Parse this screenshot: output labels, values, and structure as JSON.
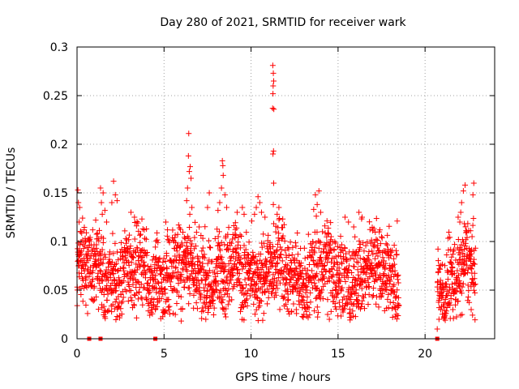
{
  "chart_data": {
    "type": "scatter",
    "title": "Day 280 of 2021, SRMTID for receiver wark",
    "xlabel": "GPS time / hours",
    "ylabel": "SRMTID / TECUs",
    "xlim": [
      0,
      24
    ],
    "ylim": [
      0,
      0.3
    ],
    "xticks": [
      0,
      5,
      10,
      15,
      20
    ],
    "xtick_labels": [
      "0",
      "5",
      "10",
      "15",
      "20"
    ],
    "yticks": [
      0,
      0.05,
      0.1,
      0.15,
      0.2,
      0.25,
      0.3
    ],
    "ytick_labels": [
      "0",
      "0.05",
      "0.1",
      "0.15",
      "0.2",
      "0.25",
      "0.3"
    ],
    "grid": true,
    "marker": "plus",
    "color": "#ff0000",
    "series": [
      {
        "name": "SRMTID",
        "segments": [
          {
            "x_start": 0.0,
            "x_end": 18.5,
            "y_center": 0.068,
            "y_spread": 0.028
          },
          {
            "x_start": 20.7,
            "x_end": 22.9,
            "y_center": 0.065,
            "y_spread": 0.028
          }
        ],
        "points": [
          {
            "x": 0.05,
            "y": 0.153
          },
          {
            "x": 0.08,
            "y": 0.14
          },
          {
            "x": 0.12,
            "y": 0.12
          },
          {
            "x": 0.15,
            "y": 0.135
          },
          {
            "x": 0.2,
            "y": 0.11
          },
          {
            "x": 0.25,
            "y": 0.09
          },
          {
            "x": 0.3,
            "y": 0.075
          },
          {
            "x": 0.35,
            "y": 0.06
          },
          {
            "x": 0.4,
            "y": 0.052
          },
          {
            "x": 0.5,
            "y": 0.1
          },
          {
            "x": 0.55,
            "y": 0.085
          },
          {
            "x": 0.6,
            "y": 0.07
          },
          {
            "x": 1.35,
            "y": 0.155
          },
          {
            "x": 1.4,
            "y": 0.14
          },
          {
            "x": 1.45,
            "y": 0.128
          },
          {
            "x": 1.5,
            "y": 0.15
          },
          {
            "x": 1.6,
            "y": 0.132
          },
          {
            "x": 1.7,
            "y": 0.12
          },
          {
            "x": 1.0,
            "y": 0.04
          },
          {
            "x": 1.1,
            "y": 0.043
          },
          {
            "x": 2.1,
            "y": 0.162
          },
          {
            "x": 2.2,
            "y": 0.148
          },
          {
            "x": 2.3,
            "y": 0.142
          },
          {
            "x": 2.0,
            "y": 0.14
          },
          {
            "x": 3.1,
            "y": 0.13
          },
          {
            "x": 3.3,
            "y": 0.125
          },
          {
            "x": 4.5,
            "y": 0.03
          },
          {
            "x": 4.6,
            "y": 0.033
          },
          {
            "x": 5.1,
            "y": 0.12
          },
          {
            "x": 5.2,
            "y": 0.112
          },
          {
            "x": 6.42,
            "y": 0.211
          },
          {
            "x": 6.4,
            "y": 0.188
          },
          {
            "x": 6.45,
            "y": 0.172
          },
          {
            "x": 6.5,
            "y": 0.177
          },
          {
            "x": 6.55,
            "y": 0.165
          },
          {
            "x": 6.3,
            "y": 0.142
          },
          {
            "x": 6.35,
            "y": 0.155
          },
          {
            "x": 6.6,
            "y": 0.135
          },
          {
            "x": 6.48,
            "y": 0.128
          },
          {
            "x": 7.4,
            "y": 0.02
          },
          {
            "x": 7.6,
            "y": 0.15
          },
          {
            "x": 7.5,
            "y": 0.135
          },
          {
            "x": 8.35,
            "y": 0.183
          },
          {
            "x": 8.38,
            "y": 0.178
          },
          {
            "x": 8.4,
            "y": 0.168
          },
          {
            "x": 8.3,
            "y": 0.155
          },
          {
            "x": 8.5,
            "y": 0.148
          },
          {
            "x": 8.2,
            "y": 0.14
          },
          {
            "x": 8.1,
            "y": 0.132
          },
          {
            "x": 8.6,
            "y": 0.135
          },
          {
            "x": 9.2,
            "y": 0.13
          },
          {
            "x": 9.5,
            "y": 0.135
          },
          {
            "x": 9.6,
            "y": 0.128
          },
          {
            "x": 10.4,
            "y": 0.146
          },
          {
            "x": 10.5,
            "y": 0.14
          },
          {
            "x": 10.3,
            "y": 0.135
          },
          {
            "x": 10.2,
            "y": 0.128
          },
          {
            "x": 10.6,
            "y": 0.13
          },
          {
            "x": 10.8,
            "y": 0.125
          },
          {
            "x": 11.25,
            "y": 0.281
          },
          {
            "x": 11.28,
            "y": 0.273
          },
          {
            "x": 11.3,
            "y": 0.265
          },
          {
            "x": 11.27,
            "y": 0.26
          },
          {
            "x": 11.26,
            "y": 0.252
          },
          {
            "x": 11.24,
            "y": 0.237
          },
          {
            "x": 11.31,
            "y": 0.236
          },
          {
            "x": 11.29,
            "y": 0.193
          },
          {
            "x": 11.26,
            "y": 0.19
          },
          {
            "x": 11.3,
            "y": 0.16
          },
          {
            "x": 11.28,
            "y": 0.138
          },
          {
            "x": 11.6,
            "y": 0.135
          },
          {
            "x": 11.5,
            "y": 0.128
          },
          {
            "x": 13.0,
            "y": 0.022
          },
          {
            "x": 12.6,
            "y": 0.03
          },
          {
            "x": 13.7,
            "y": 0.148
          },
          {
            "x": 13.9,
            "y": 0.152
          },
          {
            "x": 13.8,
            "y": 0.138
          },
          {
            "x": 13.6,
            "y": 0.133
          },
          {
            "x": 14.0,
            "y": 0.13
          },
          {
            "x": 13.75,
            "y": 0.126
          },
          {
            "x": 14.5,
            "y": 0.02
          },
          {
            "x": 14.4,
            "y": 0.025
          },
          {
            "x": 14.6,
            "y": 0.028
          },
          {
            "x": 15.4,
            "y": 0.125
          },
          {
            "x": 15.6,
            "y": 0.12
          },
          {
            "x": 16.2,
            "y": 0.13
          },
          {
            "x": 15.9,
            "y": 0.115
          },
          {
            "x": 17.4,
            "y": 0.112
          },
          {
            "x": 18.4,
            "y": 0.121
          },
          {
            "x": 18.3,
            "y": 0.03
          },
          {
            "x": 17.9,
            "y": 0.032
          },
          {
            "x": 20.7,
            "y": 0.01
          },
          {
            "x": 20.8,
            "y": 0.02
          },
          {
            "x": 20.9,
            "y": 0.03
          },
          {
            "x": 21.1,
            "y": 0.037
          },
          {
            "x": 21.6,
            "y": 0.03
          },
          {
            "x": 21.9,
            "y": 0.125
          },
          {
            "x": 22.1,
            "y": 0.14
          },
          {
            "x": 22.2,
            "y": 0.152
          },
          {
            "x": 22.3,
            "y": 0.158
          },
          {
            "x": 22.0,
            "y": 0.12
          },
          {
            "x": 22.05,
            "y": 0.13
          },
          {
            "x": 22.4,
            "y": 0.11
          },
          {
            "x": 22.8,
            "y": 0.16
          },
          {
            "x": 22.75,
            "y": 0.148
          },
          {
            "x": 22.7,
            "y": 0.105
          },
          {
            "x": 22.65,
            "y": 0.03
          },
          {
            "x": 0.7,
            "y": 0.0
          },
          {
            "x": 1.35,
            "y": 0.0
          },
          {
            "x": 4.5,
            "y": 0.0
          },
          {
            "x": 20.7,
            "y": 0.0
          }
        ]
      }
    ]
  }
}
